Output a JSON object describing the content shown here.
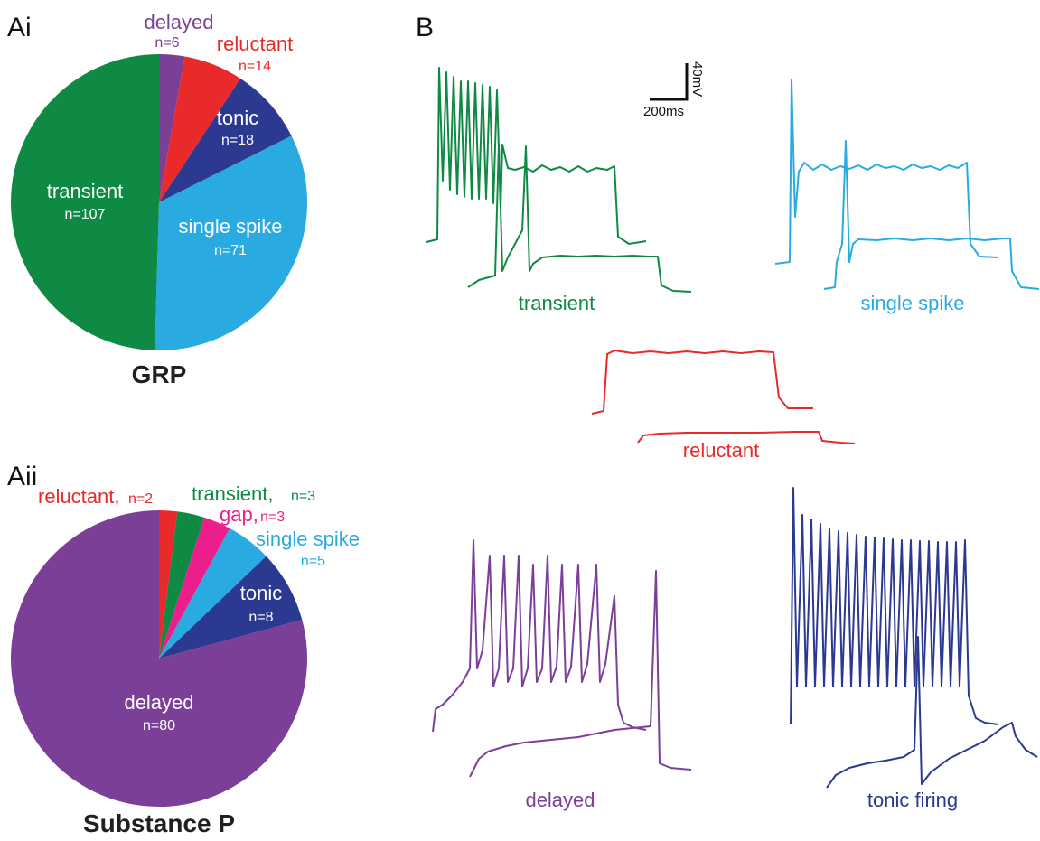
{
  "panels": {
    "ai": "Ai",
    "aii": "Aii",
    "b": "B"
  },
  "colors": {
    "transient": "#0f8a45",
    "single_spike": "#29abe2",
    "reluctant": "#e82a2a",
    "tonic": "#2b3990",
    "delayed": "#7b3f98",
    "gap": "#ec1e8c"
  },
  "chart_data": [
    {
      "type": "pie",
      "title": "GRP",
      "slices": [
        {
          "name": "delayed",
          "n_label": "n=6",
          "value": 6,
          "color": "#7b3f98"
        },
        {
          "name": "reluctant",
          "n_label": "n=14",
          "value": 14,
          "color": "#e82a2a"
        },
        {
          "name": "tonic",
          "n_label": "n=18",
          "value": 18,
          "color": "#2b3990"
        },
        {
          "name": "single spike",
          "n_label": "n=71",
          "value": 71,
          "color": "#29abe2"
        },
        {
          "name": "transient",
          "n_label": "n=107",
          "value": 107,
          "color": "#0f8a45"
        }
      ]
    },
    {
      "type": "pie",
      "title": "Substance P",
      "slices": [
        {
          "name": "reluctant,",
          "n_label": "n=2",
          "value": 2,
          "color": "#e82a2a"
        },
        {
          "name": "transient,",
          "n_label": "n=3",
          "value": 3,
          "color": "#0f8a45"
        },
        {
          "name": "gap,",
          "n_label": "n=3",
          "value": 3,
          "color": "#ec1e8c"
        },
        {
          "name": "single spike",
          "n_label": "n=5",
          "value": 5,
          "color": "#29abe2"
        },
        {
          "name": "tonic",
          "n_label": "n=8",
          "value": 8,
          "color": "#2b3990"
        },
        {
          "name": "delayed",
          "n_label": "n=80",
          "value": 80,
          "color": "#7b3f98"
        }
      ]
    }
  ],
  "traces": {
    "scale_bar": {
      "voltage": "40mV",
      "time": "200ms"
    },
    "labels": {
      "transient": "transient",
      "single_spike": "single spike",
      "reluctant": "reluctant",
      "delayed": "delayed",
      "tonic": "tonic firing"
    }
  }
}
